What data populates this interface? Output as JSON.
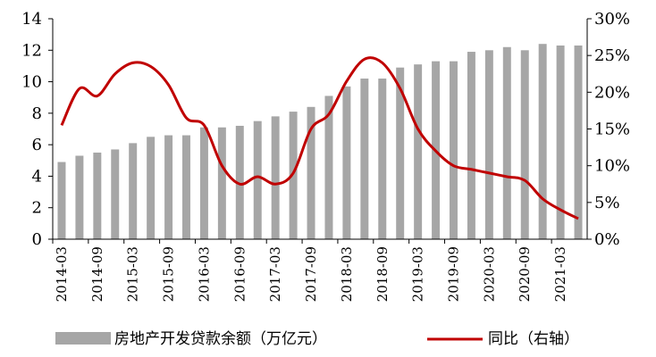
{
  "chart_data": {
    "type": "bar+line",
    "title": "",
    "categories": [
      "2014-03",
      "2014-06",
      "2014-09",
      "2014-12",
      "2015-03",
      "2015-06",
      "2015-09",
      "2015-12",
      "2016-03",
      "2016-06",
      "2016-09",
      "2016-12",
      "2017-03",
      "2017-06",
      "2017-09",
      "2017-12",
      "2018-03",
      "2018-06",
      "2018-09",
      "2018-12",
      "2019-03",
      "2019-06",
      "2019-09",
      "2019-12",
      "2020-03",
      "2020-06",
      "2020-09",
      "2020-12",
      "2021-03",
      "2021-06"
    ],
    "x_tick_labels": [
      "2014-03",
      "2014-09",
      "2015-03",
      "2015-09",
      "2016-03",
      "2016-09",
      "2017-03",
      "2017-09",
      "2018-03",
      "2018-09",
      "2019-03",
      "2019-09",
      "2020-03",
      "2020-09",
      "2021-03"
    ],
    "series": [
      {
        "name": "房地产开发贷款余额（万亿元）",
        "type": "bar",
        "axis": "left",
        "color": "#a6a6a6",
        "values": [
          4.9,
          5.3,
          5.5,
          5.7,
          6.1,
          6.5,
          6.6,
          6.6,
          7.1,
          7.1,
          7.2,
          7.5,
          7.8,
          8.1,
          8.4,
          9.1,
          9.7,
          10.2,
          10.2,
          10.9,
          11.1,
          11.3,
          11.3,
          11.9,
          12.0,
          12.2,
          12.0,
          12.4,
          12.3,
          12.3
        ]
      },
      {
        "name": "同比（右轴）",
        "type": "line",
        "axis": "right",
        "color": "#c00000",
        "values": [
          15.5,
          20.5,
          19.5,
          22.5,
          24.0,
          23.5,
          21.0,
          16.5,
          15.5,
          10.0,
          7.5,
          8.5,
          7.5,
          9.0,
          15.0,
          17.0,
          21.5,
          24.5,
          24.0,
          20.5,
          15.0,
          12.0,
          10.0,
          9.5,
          9.0,
          8.5,
          8.0,
          5.5,
          4.0,
          2.8
        ]
      }
    ],
    "y_left": {
      "ylim": [
        0,
        14
      ],
      "ticks": [
        "0",
        "2",
        "4",
        "6",
        "8",
        "10",
        "12",
        "14"
      ]
    },
    "y_right": {
      "ylim": [
        0,
        30
      ],
      "ticks": [
        "0%",
        "5%",
        "10%",
        "15%",
        "20%",
        "25%",
        "30%"
      ]
    },
    "grid": false,
    "legend": {
      "placement": "bottom",
      "entries": [
        "房地产开发贷款余额（万亿元）",
        "同比（右轴）"
      ]
    }
  }
}
